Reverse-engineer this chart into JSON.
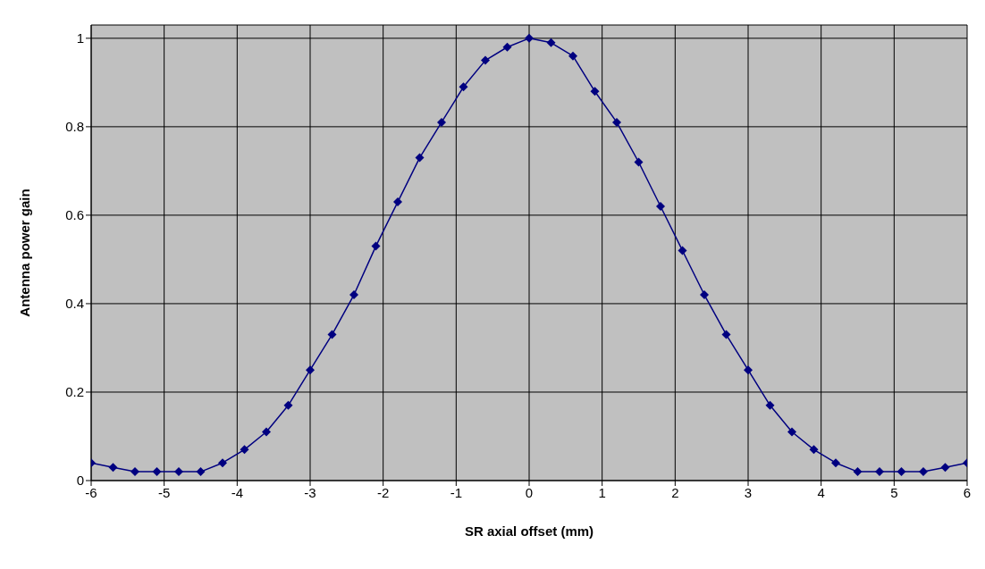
{
  "chart_data": {
    "type": "line",
    "xlabel": "SR axial offset (mm)",
    "ylabel": "Antenna power gain",
    "x": [
      -6,
      -5.7,
      -5.4,
      -5.1,
      -4.8,
      -4.5,
      -4.2,
      -3.9,
      -3.6,
      -3.3,
      -3,
      -2.7,
      -2.4,
      -2.1,
      -1.8,
      -1.5,
      -1.2,
      -0.9,
      -0.6,
      -0.3,
      0,
      0.3,
      0.6,
      0.9,
      1.2,
      1.5,
      1.8,
      2.1,
      2.4,
      2.7,
      3,
      3.3,
      3.6,
      3.9,
      4.2,
      4.5,
      4.8,
      5.1,
      5.4,
      5.7,
      6
    ],
    "series": [
      {
        "color": "#000080",
        "values": [
          0.04,
          0.03,
          0.02,
          0.02,
          0.02,
          0.02,
          0.04,
          0.07,
          0.11,
          0.17,
          0.25,
          0.33,
          0.42,
          0.53,
          0.63,
          0.73,
          0.81,
          0.89,
          0.95,
          0.98,
          1,
          0.99,
          0.96,
          0.88,
          0.81,
          0.72,
          0.62,
          0.52,
          0.42,
          0.33,
          0.25,
          0.17,
          0.11,
          0.07,
          0.04,
          0.02,
          0.02,
          0.02,
          0.02,
          0.03,
          0.04
        ]
      }
    ],
    "xlim": [
      -6,
      6
    ],
    "xticks": [
      -6,
      -5,
      -4,
      -3,
      -2,
      -1,
      0,
      1,
      2,
      3,
      4,
      5,
      6
    ],
    "ylim": [
      0,
      1.03
    ],
    "yticks": [
      0,
      0.2,
      0.4,
      0.6,
      0.8,
      1
    ],
    "grid": true,
    "legend": false,
    "marker": "diamond",
    "line_style": "solid"
  }
}
